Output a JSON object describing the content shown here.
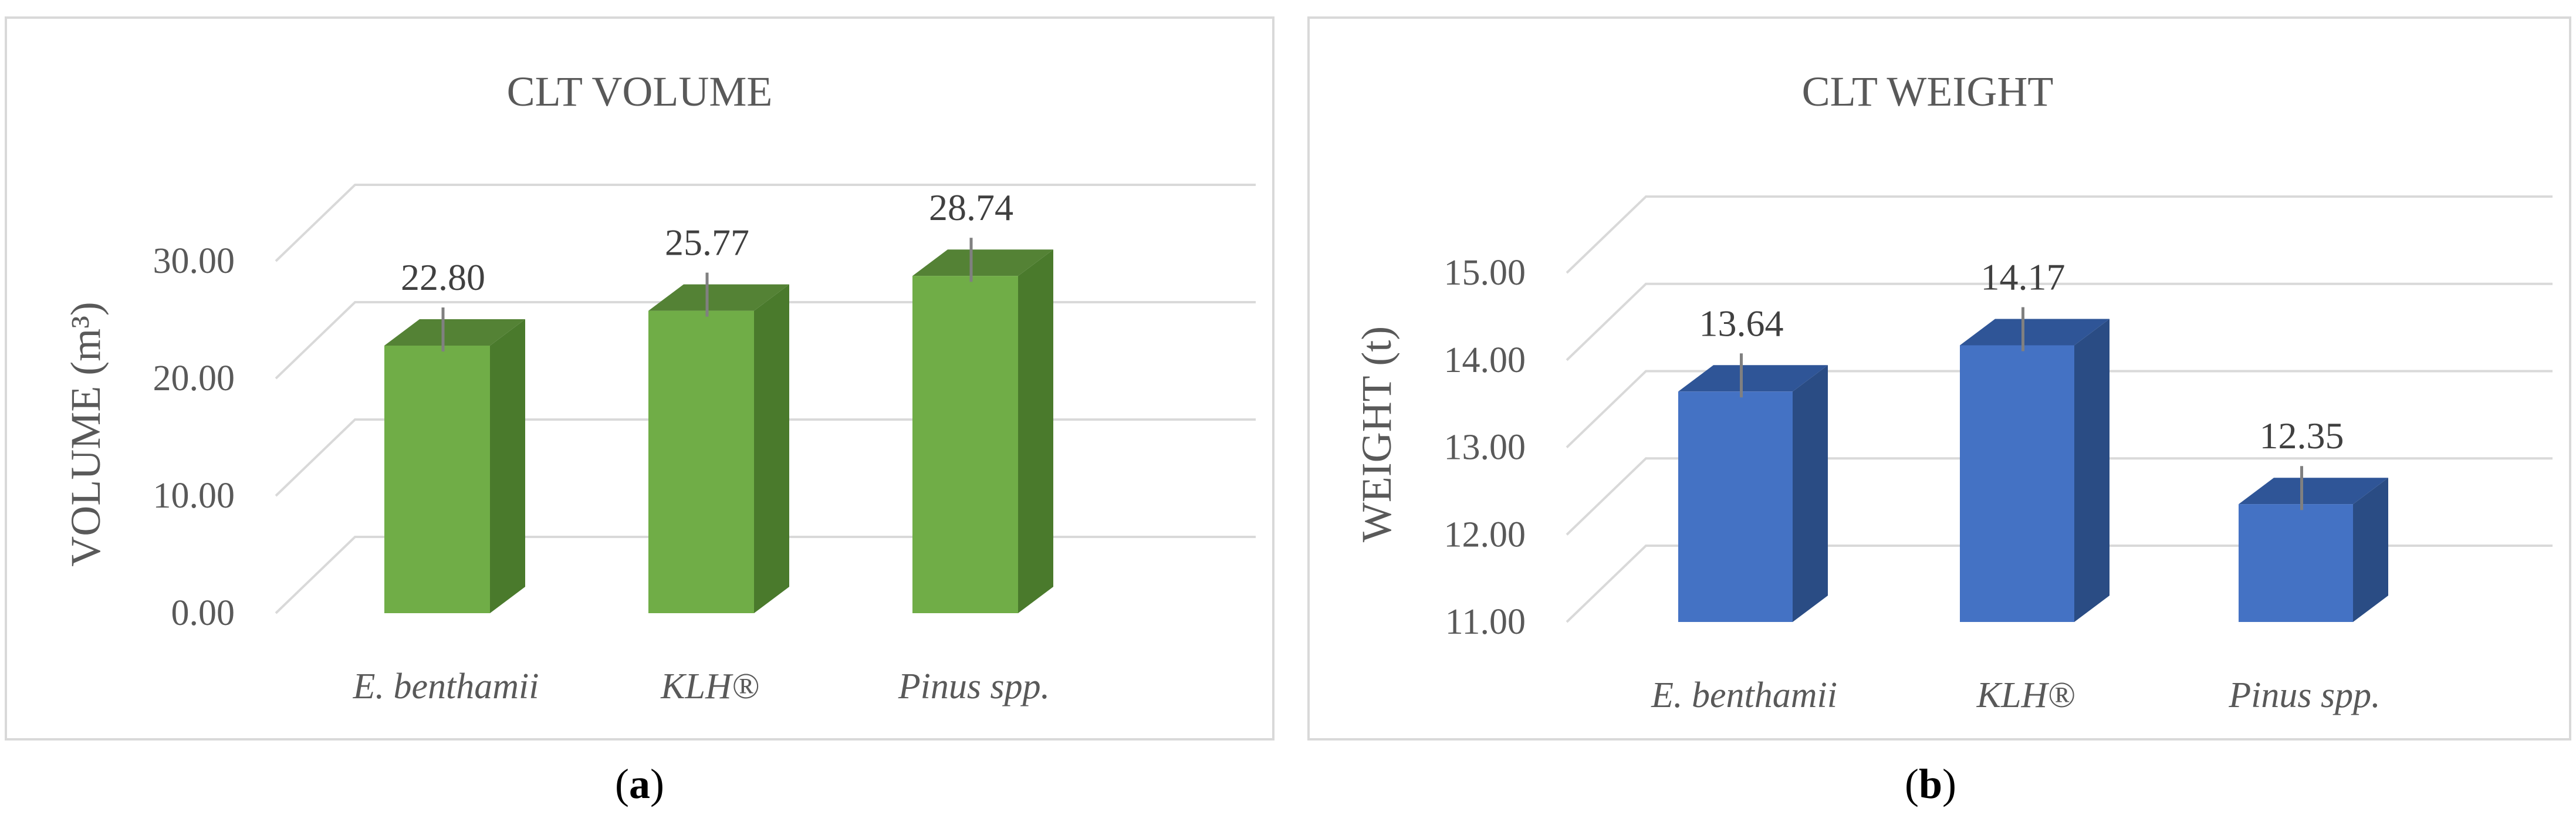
{
  "chart_data": [
    {
      "type": "bar",
      "title": "CLT VOLUME",
      "ylabel": "VOLUME (m³)",
      "xlabel": "",
      "categories": [
        "E. benthamii",
        "KLH®",
        "Pinus spp."
      ],
      "values": [
        22.8,
        25.77,
        28.74
      ],
      "data_labels": [
        "22.80",
        "25.77",
        "28.74"
      ],
      "yticks": [
        "0.00",
        "10.00",
        "20.00",
        "30.00"
      ],
      "ylim": [
        0,
        30
      ],
      "grid": true,
      "error_bars": true,
      "style": "3d-column",
      "colors": {
        "front": "#70ad47",
        "side": "#4a7a2c",
        "top": "#548235"
      },
      "caption": {
        "open": "(",
        "letter": "a",
        "close": ")"
      }
    },
    {
      "type": "bar",
      "title": "CLT WEIGHT",
      "ylabel": "WEIGHT (t)",
      "xlabel": "",
      "categories": [
        "E. benthamii",
        "KLH®",
        "Pinus spp."
      ],
      "values": [
        13.64,
        14.17,
        12.35
      ],
      "data_labels": [
        "13.64",
        "14.17",
        "12.35"
      ],
      "yticks": [
        "11.00",
        "12.00",
        "13.00",
        "14.00",
        "15.00"
      ],
      "ylim": [
        11,
        15
      ],
      "grid": true,
      "error_bars": true,
      "style": "3d-column",
      "colors": {
        "front": "#4472c4",
        "side": "#2a4c84",
        "top": "#2f5597"
      },
      "caption": {
        "open": "(",
        "letter": "b",
        "close": ")"
      }
    }
  ]
}
